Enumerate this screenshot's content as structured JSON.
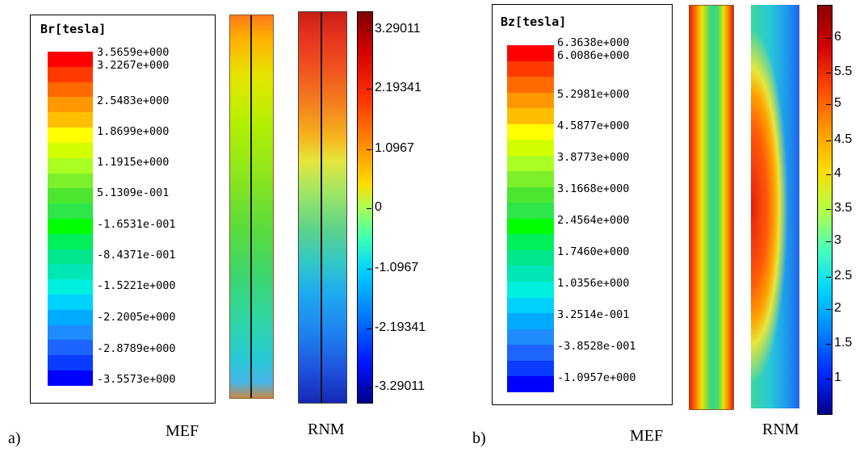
{
  "panel_a": {
    "label": "a)",
    "legend": {
      "title": "Br[tesla]",
      "values": [
        "3.5659e+000",
        "3.2267e+000",
        "2.5483e+000",
        "1.8699e+000",
        "1.1915e+000",
        "5.1309e-001",
        "-1.6531e-001",
        "-8.4371e-001",
        "-1.5221e+000",
        "-2.2005e+000",
        "-2.8789e+000",
        "-3.5573e+000"
      ],
      "colors": [
        "#ff0000",
        "#ff3a00",
        "#ff6a00",
        "#ff9800",
        "#ffbf00",
        "#ffff00",
        "#d2ff00",
        "#aaff22",
        "#7cf02a",
        "#4de62e",
        "#2ee64a",
        "#00ff00",
        "#00f05a",
        "#00e68c",
        "#00e6b4",
        "#00f0e0",
        "#00d2ff",
        "#00aaff",
        "#1e8cff",
        "#1e64ff",
        "#0a3cff",
        "#0000ff"
      ]
    },
    "captions": {
      "mef": "MEF",
      "rnm": "RNM"
    },
    "colorbar": {
      "ticks": [
        "3.29011",
        "2.19341",
        "1.0967",
        "0",
        "-1.0967",
        "-2.19341",
        "-3.29011"
      ]
    }
  },
  "panel_b": {
    "label": "b)",
    "legend": {
      "title": "Bz[tesla]",
      "values": [
        "6.3638e+000",
        "6.0086e+000",
        "5.2981e+000",
        "4.5877e+000",
        "3.8773e+000",
        "3.1668e+000",
        "2.4564e+000",
        "1.7460e+000",
        "1.0356e+000",
        "3.2514e-001",
        "-3.8528e-001",
        "-1.0957e+000"
      ],
      "colors": [
        "#ff0000",
        "#ff3a00",
        "#ff6a00",
        "#ff9800",
        "#ffbf00",
        "#ffff00",
        "#d2ff00",
        "#aaff22",
        "#7cf02a",
        "#4de62e",
        "#2ee64a",
        "#00ff00",
        "#00f05a",
        "#00e68c",
        "#00e6b4",
        "#00f0e0",
        "#00d2ff",
        "#00aaff",
        "#1e8cff",
        "#1e64ff",
        "#0a3cff",
        "#0000ff"
      ]
    },
    "captions": {
      "mef": "MEF",
      "rnm": "RNM"
    },
    "colorbar": {
      "ticks": [
        "6",
        "5.5",
        "5",
        "4.5",
        "4",
        "3.5",
        "3",
        "2.5",
        "2",
        "1.5",
        "1"
      ]
    }
  }
}
